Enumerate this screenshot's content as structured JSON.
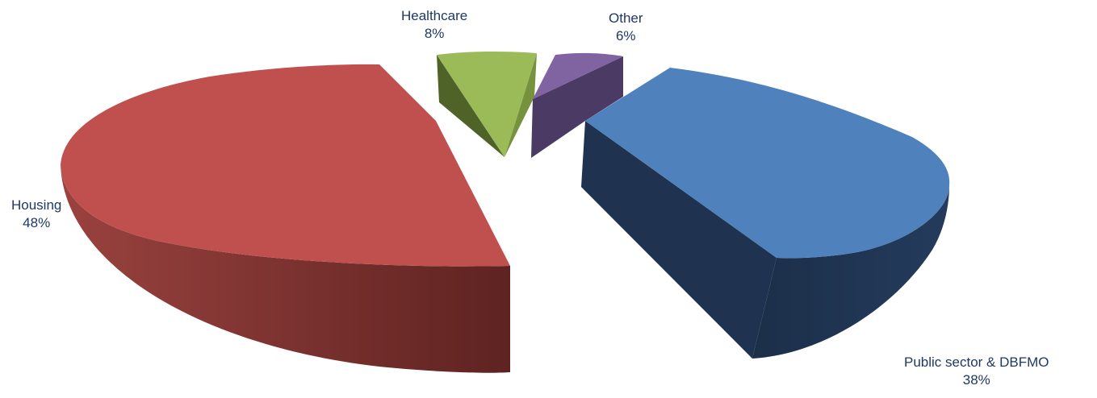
{
  "chart_data": {
    "type": "pie",
    "style": "3d-exploded",
    "title": "",
    "slices": [
      {
        "label": "Housing",
        "value": 48,
        "display": "48%",
        "color": "#c0504d",
        "side_color": "#7a2e2c"
      },
      {
        "label": "Healthcare",
        "value": 8,
        "display": "8%",
        "color": "#9bbb59",
        "side_color": "#4f6228"
      },
      {
        "label": "Other",
        "value": 6,
        "display": "6%",
        "color": "#8064a2",
        "side_color": "#4b3a63"
      },
      {
        "label": "Public sector & DBFMO",
        "value": 38,
        "display": "38%",
        "color": "#4f81bd",
        "side_color": "#1f3350"
      }
    ],
    "legend": "none",
    "label_color": "#1f3864"
  }
}
